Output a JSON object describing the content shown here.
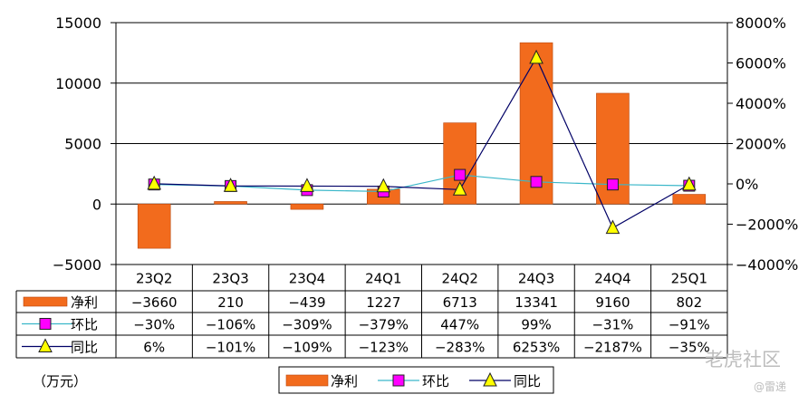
{
  "chart_data": {
    "type": "bar",
    "categories": [
      "23Q2",
      "23Q3",
      "23Q4",
      "24Q1",
      "24Q2",
      "24Q3",
      "24Q4",
      "25Q1"
    ],
    "series": [
      {
        "name": "净利",
        "kind": "bar",
        "axis": "left",
        "color": "#f26b1d",
        "values": [
          -3660,
          210,
          -439,
          1227,
          6713,
          13341,
          9160,
          802
        ],
        "labels": [
          "−3660",
          "210",
          "−439",
          "1227",
          "6713",
          "13341",
          "9160",
          "802"
        ]
      },
      {
        "name": "环比",
        "kind": "line",
        "axis": "right",
        "color": "#3ab7c9",
        "marker": "square",
        "marker_color": "#ff00ff",
        "values": [
          -30,
          -106,
          -309,
          -379,
          447,
          99,
          -31,
          -91
        ],
        "labels": [
          "−30%",
          "−106%",
          "−309%",
          "−379%",
          "447%",
          "99%",
          "−31%",
          "−91%"
        ]
      },
      {
        "name": "同比",
        "kind": "line",
        "axis": "right",
        "color": "#000066",
        "marker": "triangle",
        "marker_color": "#ffff00",
        "values": [
          6,
          -101,
          -109,
          -123,
          -283,
          6253,
          -2187,
          -35
        ],
        "labels": [
          "6%",
          "−101%",
          "−109%",
          "−123%",
          "−283%",
          "6253%",
          "−2187%",
          "−35%"
        ]
      }
    ],
    "y_left": {
      "ylim": [
        -5000,
        15000
      ],
      "ticks": [
        15000,
        10000,
        5000,
        0,
        -5000
      ],
      "tick_labels": [
        "15000",
        "10000",
        "5000",
        "0",
        "−5000"
      ]
    },
    "y_right": {
      "ylim": [
        -4000,
        8000
      ],
      "ticks": [
        8000,
        6000,
        4000,
        2000,
        0,
        -2000,
        -4000
      ],
      "tick_labels": [
        "8000%",
        "6000%",
        "4000%",
        "2000%",
        "0%",
        "−2000%",
        "−4000%"
      ]
    },
    "unit_label": "（万元）",
    "legend_placement": "bottom",
    "data_table": true,
    "grid": true
  },
  "watermarks": [
    "老虎社区",
    "@雷递"
  ]
}
